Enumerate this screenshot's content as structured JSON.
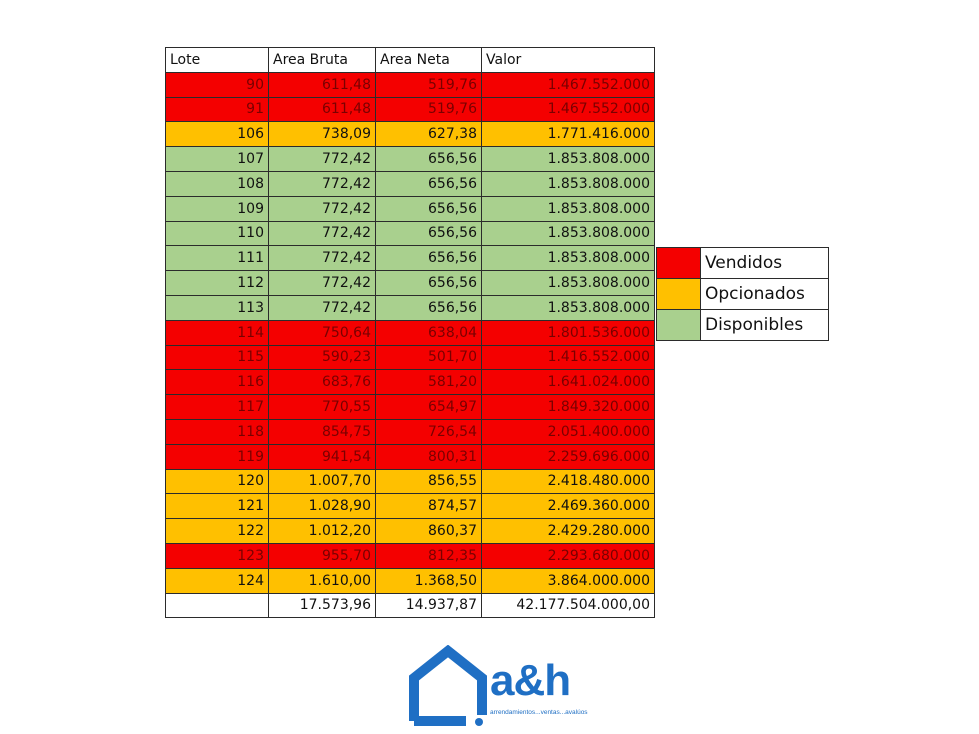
{
  "colors": {
    "vendidos": "#f40000",
    "opcionados": "#ffc000",
    "disponibles": "#a9d08e",
    "brand": "#1f6fc4"
  },
  "table": {
    "headers": [
      "Lote",
      "Area Bruta",
      "Area Neta",
      "Valor"
    ],
    "rows": [
      {
        "lote": "90",
        "bruta": "611,48",
        "neta": "519,76",
        "valor": "1.467.552.000",
        "status": "vendidos"
      },
      {
        "lote": "91",
        "bruta": "611,48",
        "neta": "519,76",
        "valor": "1.467.552.000",
        "status": "vendidos"
      },
      {
        "lote": "106",
        "bruta": "738,09",
        "neta": "627,38",
        "valor": "1.771.416.000",
        "status": "opcionados"
      },
      {
        "lote": "107",
        "bruta": "772,42",
        "neta": "656,56",
        "valor": "1.853.808.000",
        "status": "disponibles"
      },
      {
        "lote": "108",
        "bruta": "772,42",
        "neta": "656,56",
        "valor": "1.853.808.000",
        "status": "disponibles"
      },
      {
        "lote": "109",
        "bruta": "772,42",
        "neta": "656,56",
        "valor": "1.853.808.000",
        "status": "disponibles"
      },
      {
        "lote": "110",
        "bruta": "772,42",
        "neta": "656,56",
        "valor": "1.853.808.000",
        "status": "disponibles"
      },
      {
        "lote": "111",
        "bruta": "772,42",
        "neta": "656,56",
        "valor": "1.853.808.000",
        "status": "disponibles"
      },
      {
        "lote": "112",
        "bruta": "772,42",
        "neta": "656,56",
        "valor": "1.853.808.000",
        "status": "disponibles"
      },
      {
        "lote": "113",
        "bruta": "772,42",
        "neta": "656,56",
        "valor": "1.853.808.000",
        "status": "disponibles"
      },
      {
        "lote": "114",
        "bruta": "750,64",
        "neta": "638,04",
        "valor": "1.801.536.000",
        "status": "vendidos"
      },
      {
        "lote": "115",
        "bruta": "590,23",
        "neta": "501,70",
        "valor": "1.416.552.000",
        "status": "vendidos"
      },
      {
        "lote": "116",
        "bruta": "683,76",
        "neta": "581,20",
        "valor": "1.641.024.000",
        "status": "vendidos"
      },
      {
        "lote": "117",
        "bruta": "770,55",
        "neta": "654,97",
        "valor": "1.849.320.000",
        "status": "vendidos"
      },
      {
        "lote": "118",
        "bruta": "854,75",
        "neta": "726,54",
        "valor": "2.051.400.000",
        "status": "vendidos"
      },
      {
        "lote": "119",
        "bruta": "941,54",
        "neta": "800,31",
        "valor": "2.259.696.000",
        "status": "vendidos"
      },
      {
        "lote": "120",
        "bruta": "1.007,70",
        "neta": "856,55",
        "valor": "2.418.480.000",
        "status": "opcionados"
      },
      {
        "lote": "121",
        "bruta": "1.028,90",
        "neta": "874,57",
        "valor": "2.469.360.000",
        "status": "opcionados"
      },
      {
        "lote": "122",
        "bruta": "1.012,20",
        "neta": "860,37",
        "valor": "2.429.280.000",
        "status": "opcionados"
      },
      {
        "lote": "123",
        "bruta": "955,70",
        "neta": "812,35",
        "valor": "2.293.680.000",
        "status": "vendidos"
      },
      {
        "lote": "124",
        "bruta": "1.610,00",
        "neta": "1.368,50",
        "valor": "3.864.000.000",
        "status": "opcionados"
      }
    ],
    "totals": {
      "bruta": "17.573,96",
      "neta": "14.937,87",
      "valor": "42.177.504.000,00"
    }
  },
  "legend": [
    {
      "key": "vendidos",
      "label": "Vendidos"
    },
    {
      "key": "opcionados",
      "label": "Opcionados"
    },
    {
      "key": "disponibles",
      "label": "Disponibles"
    }
  ],
  "logo": {
    "icon": "house-icon",
    "name": "a&h",
    "tagline": "arrendamientos...ventas...avalúos"
  }
}
